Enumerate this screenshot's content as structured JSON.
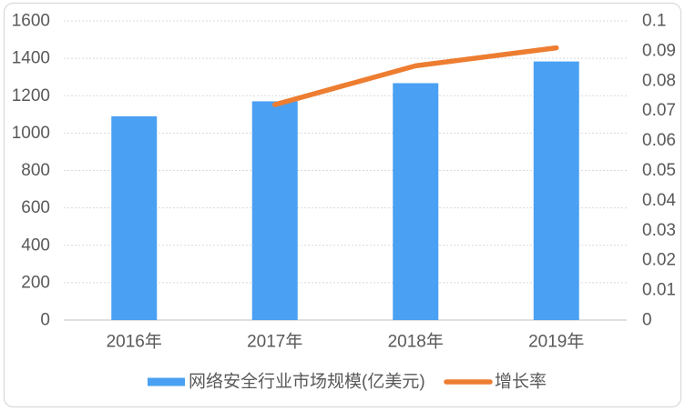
{
  "chart_data": {
    "type": "bar",
    "subtype": "combo-bar-line-dual-axis",
    "title": "",
    "categories": [
      "2016年",
      "2017年",
      "2018年",
      "2019年"
    ],
    "series": [
      {
        "name": "网络安全行业市场规模(亿美元)",
        "type": "bar",
        "axis": "left",
        "values": [
          1090,
          1170,
          1267,
          1383
        ],
        "color": "#4AA0F2"
      },
      {
        "name": "增长率",
        "type": "line",
        "axis": "right",
        "values": [
          null,
          0.072,
          0.085,
          0.091
        ],
        "color": "#ED7D31"
      }
    ],
    "left_axis": {
      "min": 0,
      "max": 1600,
      "step": 200,
      "tick_labels": [
        "1600",
        "1400",
        "1200",
        "1000",
        "800",
        "600",
        "400",
        "200",
        "0"
      ]
    },
    "right_axis": {
      "min": 0,
      "max": 0.1,
      "step": 0.01,
      "tick_labels": [
        "0.1",
        "0.09",
        "0.08",
        "0.07",
        "0.06",
        "0.05",
        "0.04",
        "0.03",
        "0.02",
        "0.01",
        "0"
      ]
    },
    "legend": {
      "position": "bottom",
      "items": [
        {
          "label": "网络安全行业市场规模(亿美元)",
          "swatch": "rect",
          "color": "#4AA0F2"
        },
        {
          "label": "增长率",
          "swatch": "line",
          "color": "#ED7D31"
        }
      ]
    },
    "grid": true,
    "style": {
      "text_color": "#595959",
      "grid_color": "#D9D9D9",
      "baseline_color": "#BFBFBF",
      "border_color": "#D9D9D9",
      "background": "#FFFFFF"
    }
  }
}
